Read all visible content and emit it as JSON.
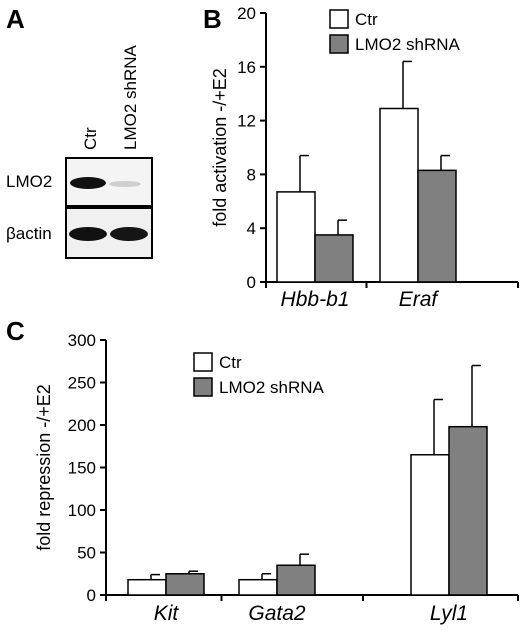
{
  "panels": {
    "A": "A",
    "B": "B",
    "C": "C"
  },
  "blot": {
    "lanes": [
      "Ctr",
      "LMO2 shRNA"
    ],
    "rows": [
      "LMO2",
      "βactin"
    ]
  },
  "colors": {
    "ctr": "#ffffff",
    "shrna": "#808080",
    "axis": "#000000"
  },
  "chart_data": [
    {
      "type": "bar",
      "panel": "B",
      "categories": [
        "Hbb-b1",
        "Eraf"
      ],
      "series": [
        {
          "name": "Ctr",
          "values": [
            6.7,
            12.9
          ],
          "errors": [
            2.7,
            3.5
          ]
        },
        {
          "name": "LMO2 shRNA",
          "values": [
            3.5,
            8.3
          ],
          "errors": [
            1.1,
            1.1
          ]
        }
      ],
      "ylabel": "fold activation -/+E2",
      "ylim": [
        0,
        20
      ],
      "yticks": [
        0,
        4,
        8,
        12,
        16,
        20
      ],
      "legend": "top-left"
    },
    {
      "type": "bar",
      "panel": "C",
      "categories": [
        "Kit",
        "Gata2",
        "Lyl1"
      ],
      "series": [
        {
          "name": "Ctr",
          "values": [
            18,
            18,
            165
          ],
          "errors": [
            6,
            7,
            65
          ]
        },
        {
          "name": "LMO2 shRNA",
          "values": [
            25,
            35,
            198
          ],
          "errors": [
            3,
            13,
            72
          ]
        }
      ],
      "ylabel": "fold  repression -/+E2",
      "ylim": [
        0,
        300
      ],
      "yticks": [
        0,
        50,
        100,
        150,
        200,
        250,
        300
      ],
      "legend": "top-left"
    }
  ]
}
